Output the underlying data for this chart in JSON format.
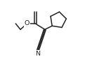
{
  "bg_color": "#ffffff",
  "line_color": "#222222",
  "lw": 1.1,
  "figsize": [
    1.21,
    0.85
  ],
  "dpi": 100,
  "xlim": [
    0.0,
    1.0
  ],
  "ylim": [
    0.0,
    1.0
  ]
}
